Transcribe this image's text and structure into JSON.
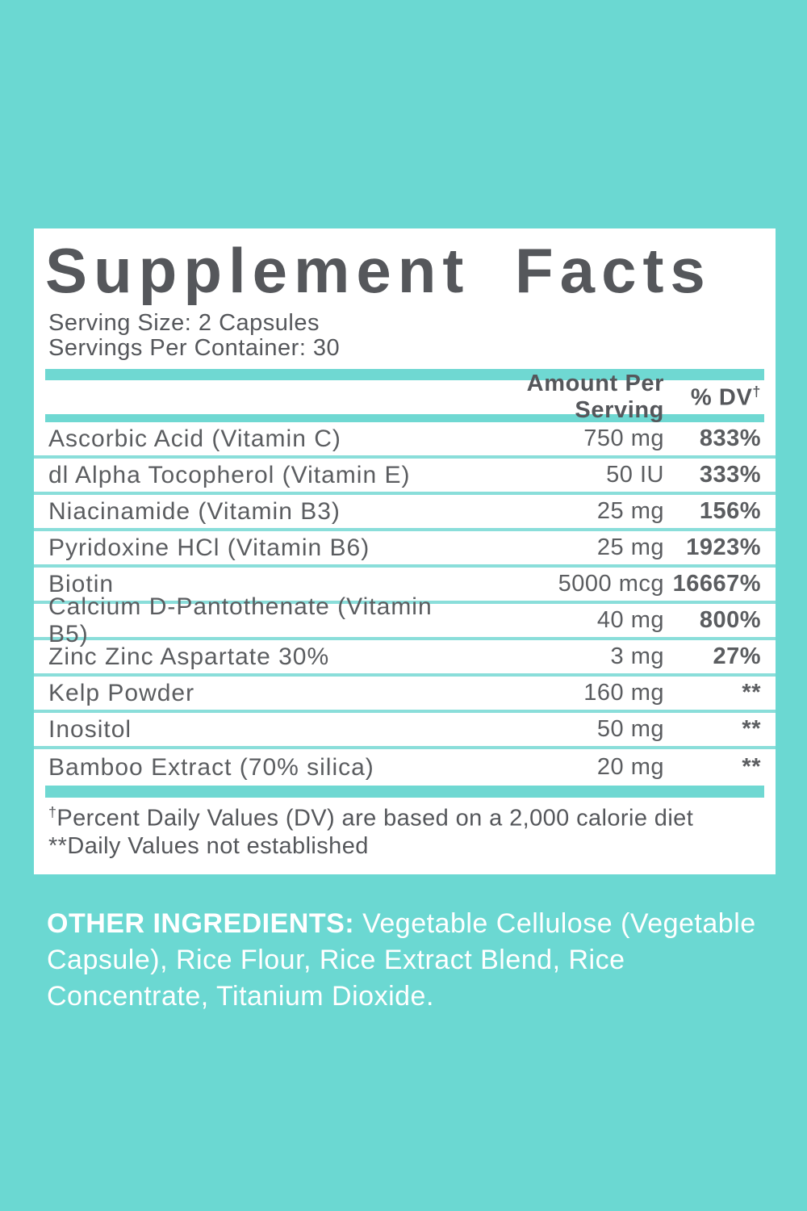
{
  "colors": {
    "background_teal": "#6bd8d2",
    "divider_teal": "#6fd8d2",
    "row_separator_teal": "#8adeda",
    "panel_white": "#ffffff",
    "text_gray": "#55575b"
  },
  "panel": {
    "title": "Supplement Facts",
    "serving_size": "Serving Size: 2 Capsules",
    "servings_per_container": "Servings Per Container: 30",
    "columns": {
      "amount": "Amount Per Serving",
      "dv": "% DV",
      "dv_sup": "†"
    },
    "rows": [
      {
        "name": "Ascorbic Acid (Vitamin C)",
        "amount": "750 mg",
        "dv": "833%"
      },
      {
        "name": "dl Alpha Tocopherol (Vitamin E)",
        "amount": "50 IU",
        "dv": "333%"
      },
      {
        "name": "Niacinamide (Vitamin B3)",
        "amount": "25 mg",
        "dv": "156%"
      },
      {
        "name": "Pyridoxine HCl (Vitamin B6)",
        "amount": "25 mg",
        "dv": "1923%"
      },
      {
        "name": "Biotin",
        "amount": "5000 mcg",
        "dv": "16667%"
      },
      {
        "name": "Calcium D-Pantothenate (Vitamin B5)",
        "amount": "40 mg",
        "dv": "800%"
      },
      {
        "name": "Zinc Zinc Aspartate 30%",
        "amount": "3 mg",
        "dv": "27%"
      },
      {
        "name": "Kelp Powder",
        "amount": "160 mg",
        "dv": "**"
      },
      {
        "name": "Inositol",
        "amount": "50 mg",
        "dv": "**"
      },
      {
        "name": "Bamboo Extract (70% silica)",
        "amount": "20 mg",
        "dv": "**"
      }
    ],
    "footnotes": {
      "dagger_mark": "†",
      "dagger_text": "Percent Daily Values (DV) are based on a 2,000 calorie diet",
      "asterisk_line": "**Daily Values not established"
    }
  },
  "other_ingredients": {
    "label": "OTHER INGREDIENTS:",
    "text": " Vegetable Cellulose (Vegetable Capsule), Rice Flour, Rice Extract Blend, Rice Concentrate, Titanium Dioxide."
  }
}
